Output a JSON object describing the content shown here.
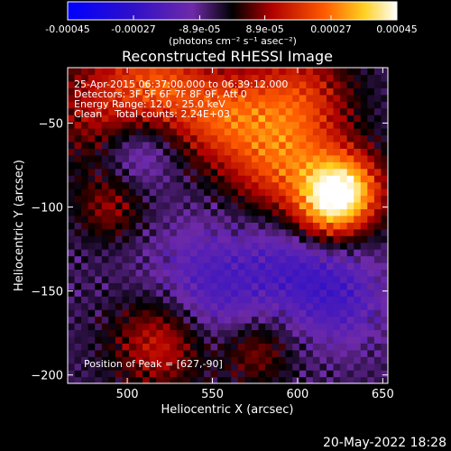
{
  "colorbar": {
    "ticks": [
      "-0.00045",
      "-0.00027",
      "-8.9e-05",
      "8.9e-05",
      "0.00027",
      "0.00045"
    ],
    "tick_values": [
      -0.00045,
      -0.00027,
      -8.9e-05,
      8.9e-05,
      0.00027,
      0.00045
    ],
    "range": [
      -0.00045,
      0.00045
    ],
    "unit_label": "(photons cm⁻² s⁻¹ asec⁻²)"
  },
  "chart_data": {
    "type": "heatmap",
    "title": "Reconstructed RHESSI Image",
    "xlabel": "Heliocentric X (arcsec)",
    "ylabel": "Heliocentric Y (arcsec)",
    "xlim": [
      465,
      653
    ],
    "ylim": [
      -205,
      -17
    ],
    "x_ticks": [
      500,
      550,
      600,
      650
    ],
    "y_ticks": [
      -50,
      -100,
      -150,
      -200
    ],
    "annotations": [
      "25-Apr-2015 06:37:00.000 to 06:39:12.000",
      "Detectors: 3F 5F 6F 7F 8F 9F, Att 0",
      "Energy Range: 12.0 - 25.0 keV",
      "Clean    Total counts: 2.24E+03"
    ],
    "peak_label": "Position of Peak = [627,-90]",
    "peak": [
      627,
      -90
    ],
    "sources": [
      {
        "x": 627,
        "y": -90,
        "amp": 1.0,
        "r": 16
      },
      {
        "x": 590,
        "y": -75,
        "amp": 0.55,
        "r": 22
      },
      {
        "x": 555,
        "y": -45,
        "amp": 0.55,
        "r": 20
      },
      {
        "x": 600,
        "y": -35,
        "amp": 0.5,
        "r": 22
      },
      {
        "x": 490,
        "y": -40,
        "amp": 0.45,
        "r": 25
      },
      {
        "x": 520,
        "y": -25,
        "amp": 0.4,
        "r": 18
      },
      {
        "x": 520,
        "y": -180,
        "amp": 0.5,
        "r": 20
      },
      {
        "x": 490,
        "y": -100,
        "amp": 0.3,
        "r": 14
      },
      {
        "x": 615,
        "y": -105,
        "amp": 0.4,
        "r": 14
      },
      {
        "x": 575,
        "y": -185,
        "amp": 0.35,
        "r": 15
      }
    ],
    "negative_regions": [
      {
        "x": 506,
        "y": -65,
        "amp": 0.35,
        "r": 16
      },
      {
        "x": 550,
        "y": -150,
        "amp": 0.35,
        "r": 28
      },
      {
        "x": 625,
        "y": -155,
        "amp": 0.3,
        "r": 20
      },
      {
        "x": 600,
        "y": -130,
        "amp": 0.25,
        "r": 20
      }
    ]
  },
  "footer": {
    "date": "20-May-2022 18:28"
  },
  "colors": {
    "background": "#000000",
    "text": "#ffffff"
  }
}
